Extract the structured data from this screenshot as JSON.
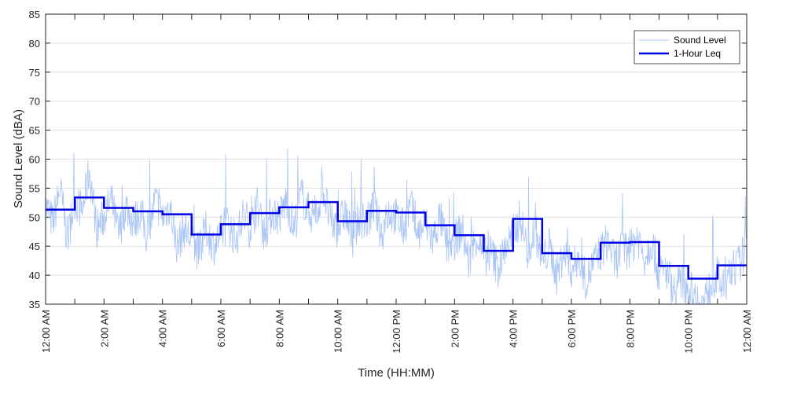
{
  "chart_data": {
    "type": "line",
    "title": "",
    "xlabel": "Time (HH:MM)",
    "ylabel": "Sound Level (dBA)",
    "ylim": [
      35,
      85
    ],
    "xlim": [
      0,
      24
    ],
    "yticks": [
      35,
      40,
      45,
      50,
      55,
      60,
      65,
      70,
      75,
      80,
      85
    ],
    "xtick_labels": [
      "12:00 AM",
      "2:00 AM",
      "4:00 AM",
      "6:00 AM",
      "8:00 AM",
      "10:00 AM",
      "12:00 PM",
      "2:00 PM",
      "4:00 PM",
      "6:00 PM",
      "8:00 PM",
      "10:00 PM",
      "12:00 AM"
    ],
    "grid": "horizontal",
    "legend_position": "top-right",
    "series": [
      {
        "name": "Sound Level",
        "color": "#a9c4f5",
        "style": "thin line, per-minute samples fluctuating around the hourly level",
        "x_hours": [
          0,
          0.25,
          0.5,
          0.75,
          1,
          1.25,
          1.5,
          1.75,
          2,
          2.25,
          2.5,
          2.75,
          3,
          3.25,
          3.5,
          3.75,
          4,
          4.25,
          4.5,
          4.75,
          5,
          5.25,
          5.5,
          5.75,
          6,
          6.25,
          6.5,
          6.75,
          7,
          7.25,
          7.5,
          7.75,
          8,
          8.25,
          8.5,
          8.75,
          9,
          9.25,
          9.5,
          9.75,
          10,
          10.25,
          10.5,
          10.75,
          11,
          11.25,
          11.5,
          11.75,
          12,
          12.25,
          12.5,
          12.75,
          13,
          13.25,
          13.5,
          13.75,
          14,
          14.25,
          14.5,
          14.75,
          15,
          15.25,
          15.5,
          15.75,
          16,
          16.25,
          16.5,
          16.75,
          17,
          17.25,
          17.5,
          17.75,
          18,
          18.25,
          18.5,
          18.75,
          19,
          19.25,
          19.5,
          19.75,
          20,
          20.25,
          20.5,
          20.75,
          21,
          21.25,
          21.5,
          21.75,
          22,
          22.25,
          22.5,
          22.75,
          23,
          23.25,
          23.5,
          23.75,
          24
        ],
        "values": [
          52,
          49,
          55,
          46,
          53,
          51,
          58,
          48,
          50,
          53,
          47,
          52,
          49,
          51,
          46,
          53,
          50,
          52,
          45,
          48,
          46,
          44,
          48,
          45,
          47,
          49,
          46,
          50,
          48,
          52,
          47,
          51,
          50,
          53,
          48,
          54,
          51,
          50,
          55,
          49,
          48,
          51,
          46,
          50,
          49,
          52,
          47,
          51,
          50,
          48,
          52,
          47,
          49,
          46,
          50,
          45,
          46,
          48,
          42,
          47,
          43,
          44,
          41,
          45,
          47,
          50,
          44,
          48,
          42,
          45,
          40,
          44,
          41,
          43,
          39,
          42,
          44,
          46,
          42,
          45,
          44,
          47,
          43,
          46,
          40,
          41,
          37,
          39,
          38,
          36,
          35,
          38,
          40,
          37,
          41,
          42,
          45
        ]
      },
      {
        "name": "1-Hour Leq",
        "color": "#0000e6",
        "style": "thick stepped line",
        "hours": [
          0,
          1,
          2,
          3,
          4,
          5,
          6,
          7,
          8,
          9,
          10,
          11,
          12,
          13,
          14,
          15,
          16,
          17,
          18,
          19,
          20,
          21,
          22,
          23
        ],
        "values": [
          51.3,
          53.4,
          51.6,
          51.0,
          50.5,
          47.0,
          48.8,
          50.7,
          51.7,
          52.6,
          49.3,
          51.1,
          50.8,
          48.6,
          46.9,
          44.2,
          49.7,
          43.8,
          42.8,
          45.6,
          45.7,
          41.6,
          39.4,
          41.7
        ]
      }
    ]
  }
}
